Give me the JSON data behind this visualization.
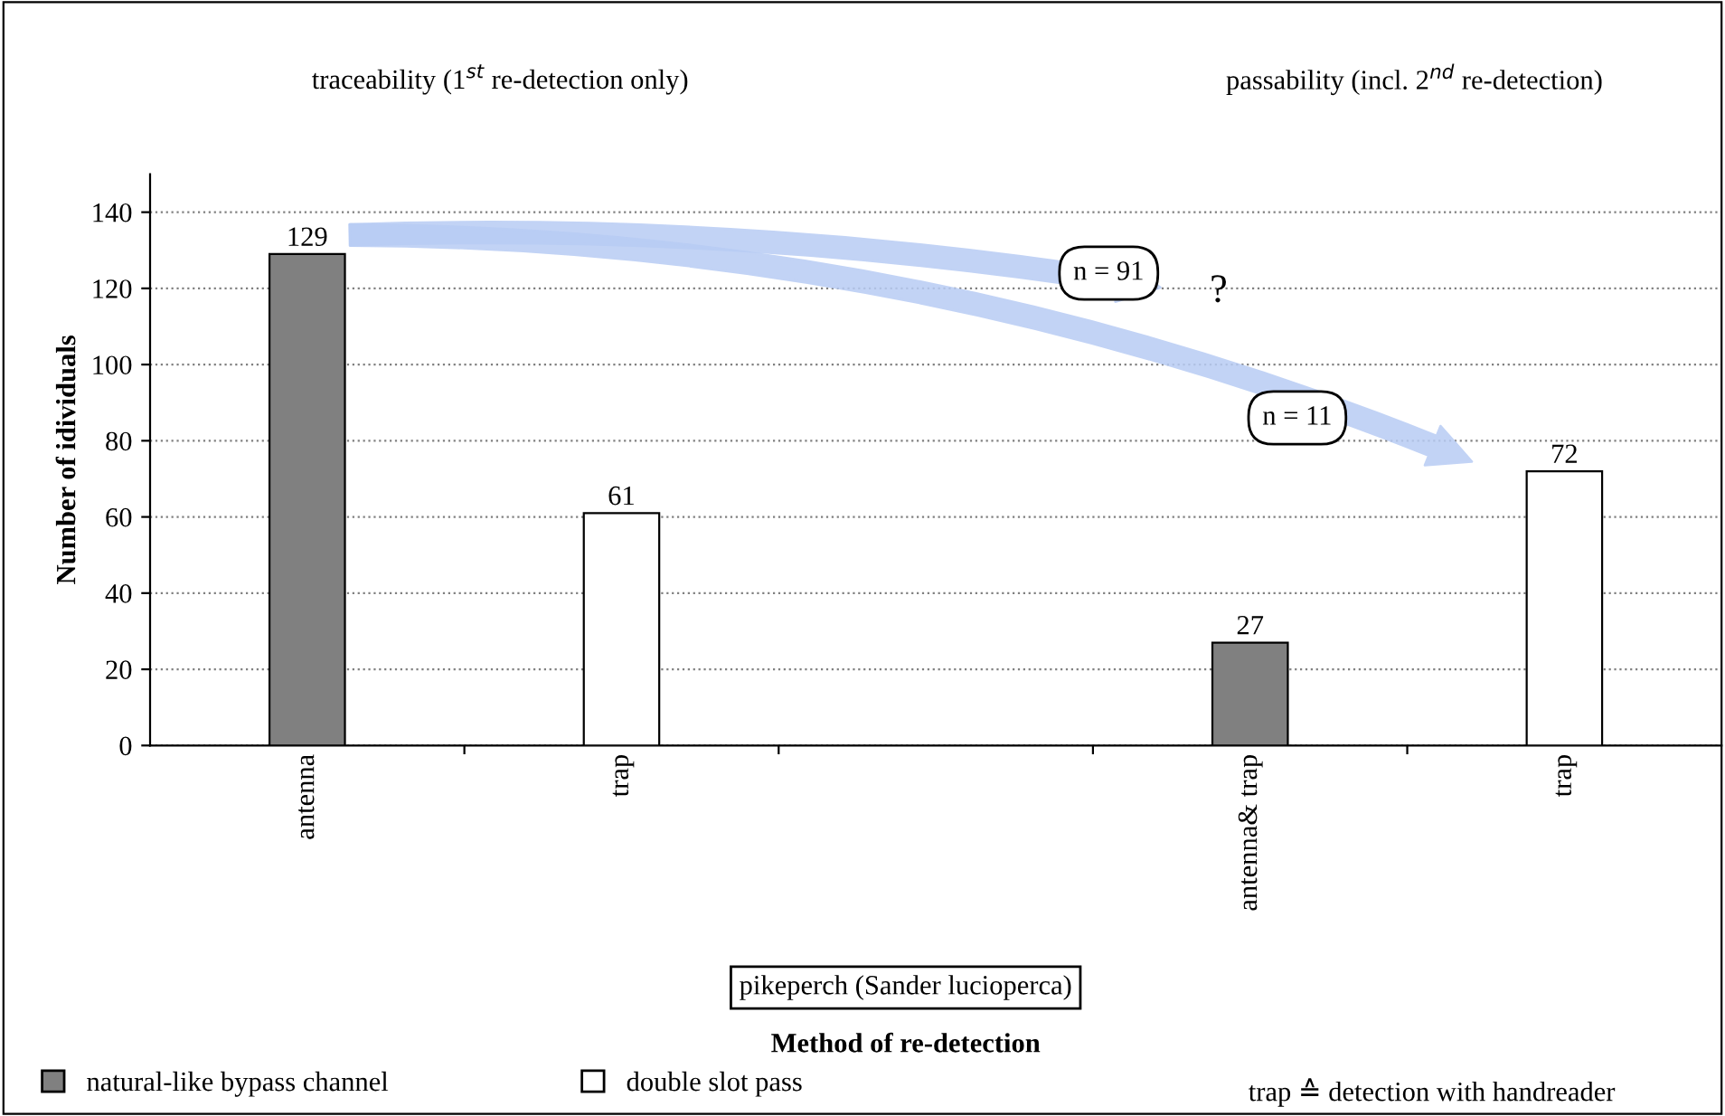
{
  "chart_data": {
    "type": "bar",
    "ylabel": "Number of idividuals",
    "xlabel": "Method of re-detection",
    "categories": [
      "antenna",
      "trap",
      null,
      "antenna& trap",
      "trap"
    ],
    "series": [
      {
        "name": "natural-like bypass channel",
        "color": "#808080",
        "values": [
          129,
          null,
          null,
          27,
          null
        ]
      },
      {
        "name": "double slot pass",
        "color": "#ffffff",
        "values": [
          null,
          61,
          null,
          null,
          72
        ]
      }
    ],
    "ylim": [
      0,
      150
    ],
    "yticks": [
      0,
      20,
      40,
      60,
      80,
      100,
      120,
      140
    ],
    "grid": "y",
    "data_labels": true,
    "legend": "bottom",
    "annotations": [
      "traceability (1$^{st}$ re-detection only)",
      "passability (incl. 2$^{nd}$ re-detection)",
      "n = 91",
      "n = 11",
      "?",
      "pikeperch (Sander lucioperca)",
      "trap ≙ detection with handreader"
    ]
  }
}
